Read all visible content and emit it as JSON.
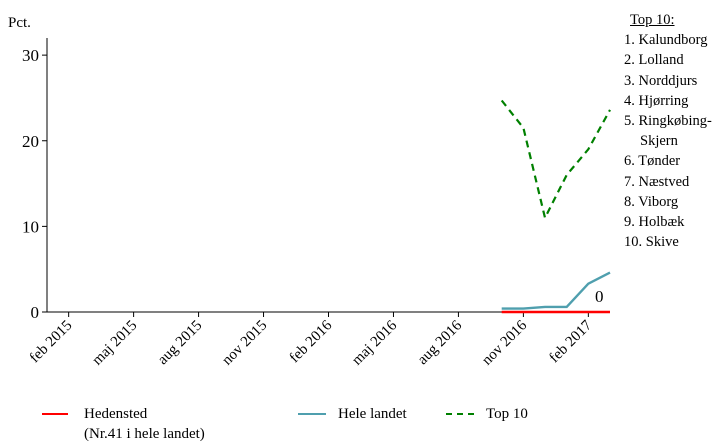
{
  "chart_data": {
    "type": "line",
    "ylabel": "Pct.",
    "ylim": [
      0,
      32
    ],
    "yticks": [
      0,
      10,
      20,
      30
    ],
    "x_tick_labels": [
      "feb 2015",
      "maj 2015",
      "aug 2015",
      "nov 2015",
      "feb 2016",
      "maj 2016",
      "aug 2016",
      "nov 2016",
      "feb 2017"
    ],
    "x_range": [
      "2015-01",
      "2017-03"
    ],
    "series": [
      {
        "name": "Hedensted",
        "name_note": "(Nr.41 i hele landet)",
        "color": "#ff0000",
        "style": "solid",
        "x": [
          "2016-10",
          "2016-11",
          "2016-12",
          "2017-01",
          "2017-02",
          "2017-03"
        ],
        "values": [
          0,
          0,
          0,
          0,
          0,
          0
        ]
      },
      {
        "name": "Hele landet",
        "color": "#4f9fae",
        "style": "solid",
        "x": [
          "2016-10",
          "2016-11",
          "2016-12",
          "2017-01",
          "2017-02",
          "2017-03"
        ],
        "values": [
          0.4,
          0.4,
          0.6,
          0.6,
          3.3,
          4.6
        ]
      },
      {
        "name": "Top 10",
        "color": "#008000",
        "style": "dashed",
        "x": [
          "2016-10",
          "2016-11",
          "2016-12",
          "2017-01",
          "2017-02",
          "2017-03"
        ],
        "values": [
          24.7,
          21.5,
          11.0,
          16.0,
          19.0,
          23.6
        ]
      }
    ],
    "annotations": [
      {
        "text": "0",
        "x": "2017-03",
        "y": 0
      }
    ],
    "grid": false,
    "legend_position": "bottom"
  },
  "top_list": {
    "title": "Top 10:",
    "items": [
      "1. Kalundborg",
      "2. Lolland",
      "3. Norddjurs",
      "4. Hjørring",
      "5. Ringkøbing-",
      "Skjern",
      "6. Tønder",
      "7. Næstved",
      "8. Viborg",
      "9. Holbæk",
      "10. Skive"
    ]
  }
}
